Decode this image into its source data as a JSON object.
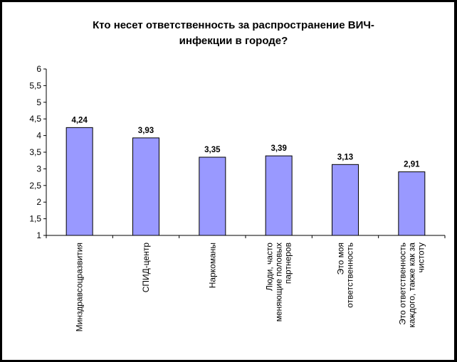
{
  "chart_data": {
    "type": "bar",
    "title": "Кто несет ответственность за распространение ВИЧ-инфекции в городе?",
    "title_lines": [
      "Кто несет ответственность за распространение ВИЧ-",
      "инфекции в городе?"
    ],
    "ylabel": "",
    "xlabel": "",
    "ylim": [
      1,
      6
    ],
    "yticks": [
      "1",
      "1,5",
      "2",
      "2,5",
      "3",
      "3,5",
      "4",
      "4,5",
      "5",
      "5,5",
      "6"
    ],
    "categories": [
      [
        "Минздравсоцразвития"
      ],
      [
        "СПИД-центр"
      ],
      [
        "Наркоманы"
      ],
      [
        "Люди, часто",
        "меняющие половых",
        "партнеров"
      ],
      [
        "Это моя",
        "ответственность"
      ],
      [
        "Это ответственность",
        "каждого, также как за",
        "чистоту"
      ]
    ],
    "values": [
      4.24,
      3.93,
      3.35,
      3.39,
      3.13,
      2.91
    ],
    "value_labels": [
      "4,24",
      "3,93",
      "3,35",
      "3,39",
      "3,13",
      "2,91"
    ],
    "bar_color": "#9999FF",
    "grid": false,
    "legend": "none"
  }
}
